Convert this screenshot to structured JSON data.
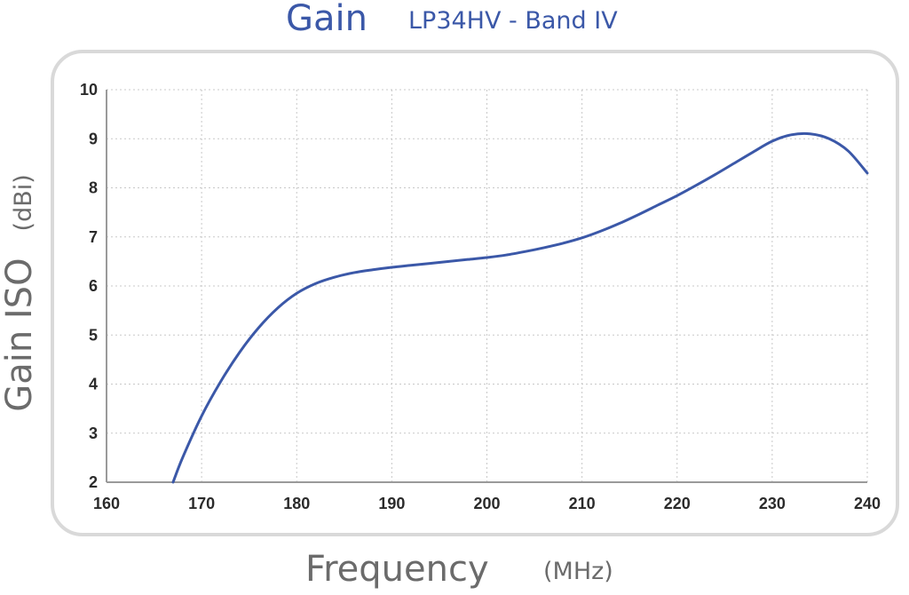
{
  "header": {
    "title": "Gain",
    "subtitle": "LP34HV - Band IV"
  },
  "axes": {
    "ylabel": "Gain ISO",
    "yunit": "(dBi)",
    "xlabel": "Frequency",
    "xunit": "(MHz)"
  },
  "colors": {
    "line": "#3b58a8",
    "title": "#3b58a8",
    "grid": "#c8c8c8",
    "frame": "#d9d9d9"
  },
  "chart_data": {
    "type": "line",
    "xlim": [
      160,
      240
    ],
    "ylim": [
      2,
      10
    ],
    "xticks": [
      160,
      170,
      180,
      190,
      200,
      210,
      220,
      230,
      240
    ],
    "yticks": [
      2,
      3,
      4,
      5,
      6,
      7,
      8,
      9,
      10
    ],
    "grid": true,
    "x": [
      167,
      168,
      170,
      172,
      174,
      176,
      178,
      180,
      182,
      184,
      186,
      188,
      190,
      192,
      194,
      196,
      198,
      200,
      202,
      204,
      206,
      208,
      210,
      212,
      214,
      216,
      218,
      220,
      222,
      224,
      226,
      228,
      230,
      232,
      234,
      236,
      238,
      240
    ],
    "y": [
      2.0,
      2.5,
      3.35,
      4.05,
      4.65,
      5.15,
      5.55,
      5.85,
      6.05,
      6.18,
      6.27,
      6.33,
      6.38,
      6.42,
      6.46,
      6.5,
      6.54,
      6.58,
      6.63,
      6.7,
      6.78,
      6.87,
      6.98,
      7.12,
      7.28,
      7.46,
      7.65,
      7.84,
      8.05,
      8.27,
      8.5,
      8.73,
      8.95,
      9.08,
      9.1,
      9.0,
      8.75,
      8.3
    ]
  }
}
